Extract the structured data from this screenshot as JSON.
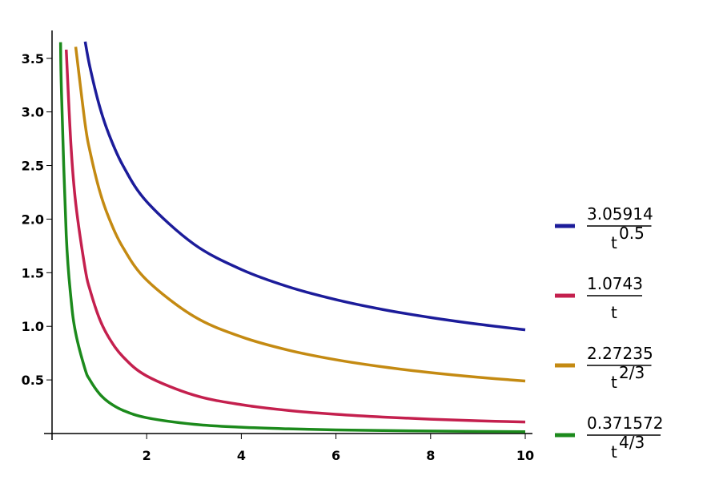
{
  "chart_data": {
    "type": "line",
    "x": [
      0.18,
      0.2,
      0.3,
      0.4,
      0.5,
      0.7,
      0.8,
      1,
      1.2,
      1.5,
      2,
      3,
      4,
      5,
      6,
      7,
      8,
      9,
      10
    ],
    "series": [
      {
        "legend": {
          "numerator": "3.05914",
          "base": "t",
          "exponent": "0.5"
        },
        "color": "#1c1c9a",
        "values": [
          null,
          null,
          null,
          null,
          null,
          3.656,
          3.42,
          3.059,
          2.793,
          2.498,
          2.163,
          1.766,
          1.53,
          1.368,
          1.249,
          1.156,
          1.082,
          1.02,
          0.967
        ]
      },
      {
        "legend": {
          "numerator": "1.0743",
          "base": "t"
        },
        "color": "#c4204e",
        "values": [
          null,
          null,
          3.581,
          2.686,
          2.149,
          1.535,
          1.343,
          1.074,
          0.895,
          0.716,
          0.537,
          0.358,
          0.269,
          0.215,
          0.179,
          0.153,
          0.134,
          0.119,
          0.107
        ]
      },
      {
        "legend": {
          "numerator": "2.27235",
          "base": "t",
          "exponent": "2/3"
        },
        "color": "#c48a12",
        "values": [
          null,
          null,
          null,
          null,
          3.607,
          2.884,
          2.636,
          2.272,
          2.013,
          1.734,
          1.431,
          1.092,
          0.902,
          0.777,
          0.688,
          0.621,
          0.568,
          0.525,
          0.49
        ]
      },
      {
        "legend": {
          "numerator": "0.371572",
          "base": "t",
          "exponent": "4/3"
        },
        "color": "#1c8a1c",
        "values": [
          3.65,
          3.176,
          1.85,
          1.26,
          0.936,
          0.597,
          0.5,
          0.372,
          0.291,
          0.216,
          0.147,
          0.086,
          0.0585,
          0.0435,
          0.034,
          0.0278,
          0.0232,
          0.0198,
          0.0172
        ]
      }
    ],
    "xlim": [
      0,
      10
    ],
    "xticks": [
      2,
      4,
      6,
      8,
      10
    ],
    "ylim": [
      0,
      3.7
    ],
    "yticks": [
      0.5,
      {
        "value": 1,
        "label": "1.0"
      },
      1.5,
      {
        "value": 2,
        "label": "2.0"
      },
      2.5,
      {
        "value": 3,
        "label": "3.0"
      },
      3.5
    ]
  }
}
